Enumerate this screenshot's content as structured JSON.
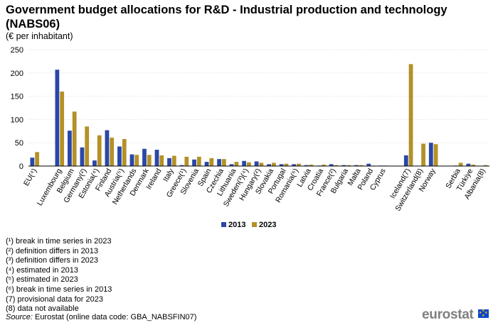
{
  "header": {
    "title": "Government budget allocations for R&D - Industrial production and technology (NABS06)",
    "subtitle": "(€ per inhabitant)"
  },
  "colors": {
    "series_2013": "#2a47a8",
    "series_2023": "#b39128",
    "grid": "#d9d9d9",
    "axis": "#000000"
  },
  "chart_data": {
    "type": "bar",
    "title": "Government budget allocations for R&D - Industrial production and technology (NABS06)",
    "ylabel": "€ per inhabitant",
    "ylim": [
      0,
      250
    ],
    "yticks": [
      0,
      50,
      100,
      150,
      200,
      250
    ],
    "grid": true,
    "legend_position": "bottom-center",
    "categories": [
      "EU(⁴)",
      "Luxembourg",
      "Belgium",
      "Germany(²)",
      "Estonia(⁴)",
      "Finland",
      "Austria(⁵)",
      "Netherlands",
      "Denmark",
      "Ireland",
      "Italy",
      "Greece(¹)",
      "Slovenia",
      "Spain",
      "Czechia",
      "Lithuania",
      "Sweden(³)(⁴)",
      "Hungary(²)",
      "Slovakia",
      "Portugal",
      "Romania(⁶)",
      "Latvia",
      "Croatia",
      "France(²)",
      "Bulgaria",
      "Malta",
      "Poland",
      "Cyprus",
      "Iceland(7)",
      "Switzerland(8)",
      "Norway",
      "Serbia",
      "Türkiye",
      "Albania(8)"
    ],
    "series": [
      {
        "name": "2013",
        "values": [
          18,
          207,
          76,
          40,
          12,
          77,
          42,
          25,
          37,
          35,
          17,
          2,
          14,
          9,
          15,
          4,
          11,
          10,
          4,
          4,
          4,
          2,
          1,
          4,
          2,
          2,
          5,
          1,
          23,
          null,
          50,
          1,
          5,
          null
        ]
      },
      {
        "name": "2023",
        "values": [
          30,
          160,
          117,
          85,
          66,
          61,
          58,
          24,
          24,
          23,
          22,
          20,
          20,
          17,
          15,
          9,
          8,
          7,
          7,
          5,
          5,
          3,
          3,
          2,
          2,
          2,
          1,
          1,
          219,
          48,
          47,
          7,
          3,
          2
        ]
      }
    ]
  },
  "legend": {
    "label_2013": "2013",
    "label_2023": "2023"
  },
  "notes": [
    "(¹) break in time series in 2023",
    "(²) definition differs in 2013",
    "(³) definition differs in 2023",
    "(⁴) estimated in 2013",
    "(⁵) estimated in 2023",
    "(⁶) break in time series in 2013",
    "(7) provisional data for 2023",
    "(8) data not available"
  ],
  "source": {
    "label": "Source:",
    "text": " Eurostat (online data code: GBA_NABSFIN07)"
  },
  "logo": {
    "text": "eurostat"
  }
}
